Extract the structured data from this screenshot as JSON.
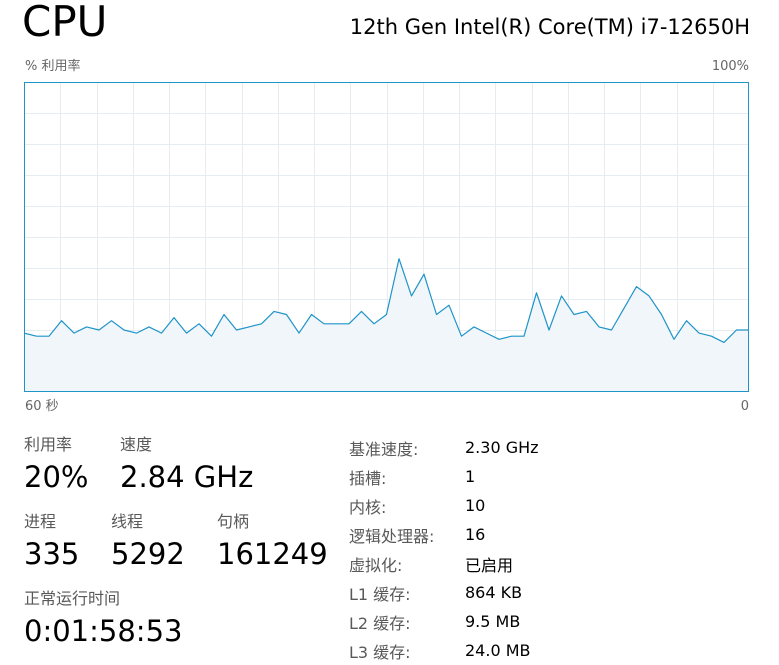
{
  "header": {
    "title": "CPU",
    "model": "12th Gen Intel(R) Core(TM) i7-12650H"
  },
  "graph": {
    "y_label": "% 利用率",
    "y_max_label": "100%",
    "x_start_label": "60 秒",
    "x_end_label": "0",
    "line_color": "#1f94c8",
    "fill_color": "#f1f6fb",
    "grid_color": "#e5ecf2"
  },
  "chart_data": {
    "type": "area",
    "ylim": [
      0,
      100
    ],
    "xlim": [
      60,
      0
    ],
    "grid": true,
    "series": [
      {
        "values": [
          19,
          18,
          18,
          23,
          19,
          21,
          20,
          23,
          20,
          19,
          21,
          19,
          24,
          19,
          22,
          18,
          25,
          20,
          21,
          22,
          26,
          25,
          19,
          25,
          22,
          22,
          22,
          26,
          22,
          25,
          43,
          31,
          38,
          25,
          28,
          18,
          21,
          19,
          17,
          18,
          18,
          32,
          20,
          31,
          25,
          26,
          21,
          20,
          27,
          34,
          31,
          25,
          17,
          23,
          19,
          18,
          16,
          20,
          20
        ]
      }
    ]
  },
  "stats": {
    "utilization_label": "利用率",
    "utilization_value": "20%",
    "speed_label": "速度",
    "speed_value": "2.84 GHz",
    "processes_label": "进程",
    "processes_value": "335",
    "threads_label": "线程",
    "threads_value": "5292",
    "handles_label": "句柄",
    "handles_value": "161249",
    "uptime_label": "正常运行时间",
    "uptime_value": "0:01:58:53"
  },
  "info": [
    {
      "key": "基准速度:",
      "value": "2.30 GHz"
    },
    {
      "key": "插槽:",
      "value": "1"
    },
    {
      "key": "内核:",
      "value": "10"
    },
    {
      "key": "逻辑处理器:",
      "value": "16"
    },
    {
      "key": "虚拟化:",
      "value": "已启用"
    },
    {
      "key": "L1 缓存:",
      "value": "864 KB"
    },
    {
      "key": "L2 缓存:",
      "value": "9.5 MB"
    },
    {
      "key": "L3 缓存:",
      "value": "24.0 MB"
    }
  ]
}
